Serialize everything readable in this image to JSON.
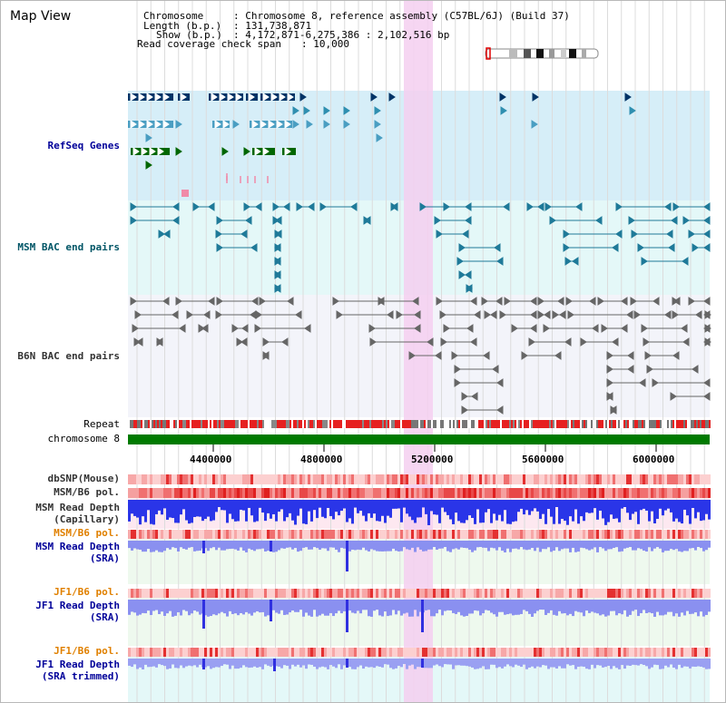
{
  "window": {
    "title": "Map View"
  },
  "info": {
    "chromosome_key": "Chromosome",
    "chromosome_val": ": Chromosome 8, reference assembly (C57BL/6J) (Build 37)",
    "length_key": "Length (b.p.)",
    "length_val": ": 131,738,871",
    "show_key": "Show (b.p.)",
    "show_val": ": 4,172,871-6,275,386 : 2,102,516 bp",
    "coverage_key": "Read coverage check span",
    "coverage_val": ": 10,000"
  },
  "tracks": {
    "refseq": "RefSeq Genes",
    "msm_bac": "MSM BAC end pairs",
    "b6n_bac": "B6N BAC end pairs",
    "repeat": "Repeat",
    "chromosome": "chromosome 8",
    "dbsnp": "dbSNP(Mouse)",
    "msm_b6_pol": "MSM/B6 pol.",
    "msm_read_depth_cap_1": "MSM Read Depth",
    "msm_read_depth_cap_2": "(Capillary)",
    "msm_b6_pol_2": "MSM/B6 pol.",
    "msm_read_depth_sra_1": "MSM Read Depth",
    "msm_read_depth_sra_2": "(SRA)",
    "jf1_b6_pol": "JF1/B6 pol.",
    "jf1_read_depth_sra_1": "JF1 Read Depth",
    "jf1_read_depth_sra_2": "(SRA)",
    "jf1_b6_pol_2": "JF1/B6 pol.",
    "jf1_read_depth_trim_1": "JF1 Read Depth",
    "jf1_read_depth_trim_2": "(SRA trimmed)"
  },
  "axis": {
    "ticks": [
      "4400000",
      "4800000",
      "5200000",
      "5600000",
      "6000000"
    ]
  },
  "colors": {
    "label_blue": "#000099",
    "label_teal": "#005566",
    "label_orange": "#e08000",
    "highlight": "#f4cff0",
    "refseq_bg": "#d6eef8",
    "bac_bg": "#e4f8f8",
    "chromosome": "#007a00"
  }
}
